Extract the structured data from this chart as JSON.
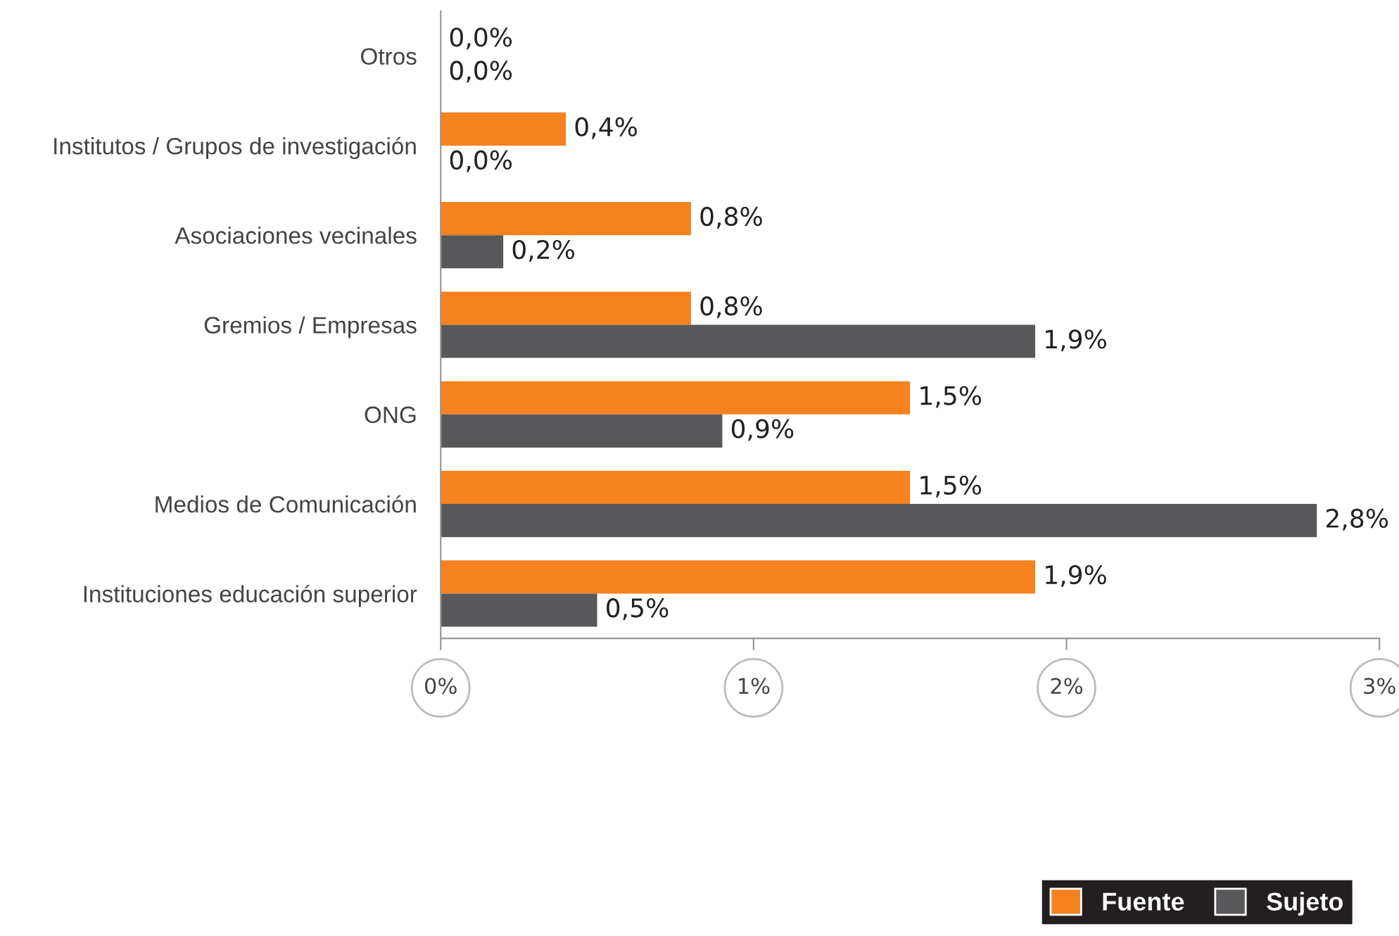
{
  "chart_data": {
    "type": "bar",
    "orientation": "horizontal",
    "categories": [
      "Otros",
      "Institutos / Grupos de investigación",
      "Asociaciones vecinales",
      "Gremios / Empresas",
      "ONG",
      "Medios de Comunicación",
      "Instituciones educación superior"
    ],
    "series": [
      {
        "name": "Fuente",
        "color": "#f5821f",
        "values": [
          0.0,
          0.4,
          0.8,
          0.8,
          1.5,
          1.5,
          1.9
        ],
        "value_labels": [
          "0,0%",
          "0,4%",
          "0,8%",
          "0,8%",
          "1,5%",
          "1,5%",
          "1,9%"
        ]
      },
      {
        "name": "Sujeto",
        "color": "#58585a",
        "values": [
          0.0,
          0.0,
          0.2,
          1.9,
          0.9,
          2.8,
          0.5
        ],
        "value_labels": [
          "0,0%",
          "0,0%",
          "0,2%",
          "1,9%",
          "0,9%",
          "2,8%",
          "0,5%"
        ]
      }
    ],
    "xlim": [
      0,
      3
    ],
    "xticks": [
      {
        "value": 0,
        "label": "0%"
      },
      {
        "value": 1,
        "label": "1%"
      },
      {
        "value": 2,
        "label": "2%"
      },
      {
        "value": 3,
        "label": "3%"
      }
    ],
    "grid": false,
    "legend": "bottom right"
  }
}
